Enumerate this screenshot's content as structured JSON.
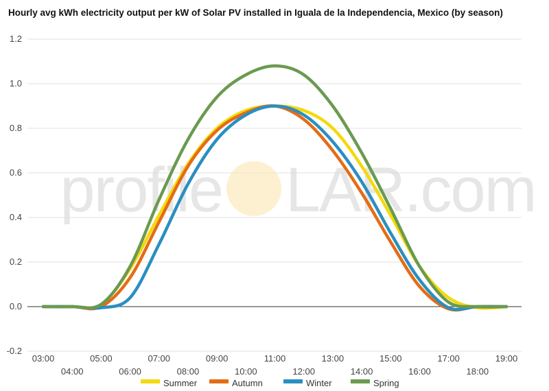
{
  "chart_data": {
    "type": "line",
    "title": "Hourly avg kWh electricity output per kW of Solar PV installed in Iguala de la Independencia, Mexico (by season)",
    "xlabel": "",
    "ylabel": "",
    "x": [
      "03:00",
      "04:00",
      "05:00",
      "06:00",
      "07:00",
      "08:00",
      "09:00",
      "10:00",
      "11:00",
      "12:00",
      "13:00",
      "14:00",
      "15:00",
      "16:00",
      "17:00",
      "18:00",
      "19:00"
    ],
    "ylim": [
      -0.2,
      1.2
    ],
    "yticks": [
      "-0.2",
      "0.0",
      "0.2",
      "0.4",
      "0.6",
      "0.8",
      "1.0",
      "1.2"
    ],
    "grid": true,
    "legend_position": "bottom",
    "series": [
      {
        "name": "Summer",
        "color": "#f4d90c",
        "values": [
          0,
          0,
          0.01,
          0.17,
          0.41,
          0.64,
          0.8,
          0.88,
          0.9,
          0.88,
          0.8,
          0.63,
          0.41,
          0.18,
          0.04,
          -0.005,
          0
        ]
      },
      {
        "name": "Autumn",
        "color": "#e46c16",
        "values": [
          0,
          0,
          0,
          0.13,
          0.38,
          0.63,
          0.79,
          0.87,
          0.9,
          0.84,
          0.7,
          0.51,
          0.29,
          0.09,
          -0.01,
          0,
          0
        ]
      },
      {
        "name": "Winter",
        "color": "#2a8fc1",
        "values": [
          0,
          0,
          -0.005,
          0.04,
          0.28,
          0.55,
          0.75,
          0.86,
          0.9,
          0.86,
          0.74,
          0.56,
          0.33,
          0.12,
          -0.005,
          0,
          0
        ]
      },
      {
        "name": "Spring",
        "color": "#6b9a50",
        "values": [
          0,
          0,
          0.01,
          0.18,
          0.48,
          0.75,
          0.94,
          1.04,
          1.08,
          1.04,
          0.9,
          0.69,
          0.44,
          0.18,
          0.02,
          0,
          0
        ]
      }
    ]
  },
  "watermark": {
    "left": "profile",
    "right": "LAR.com"
  }
}
